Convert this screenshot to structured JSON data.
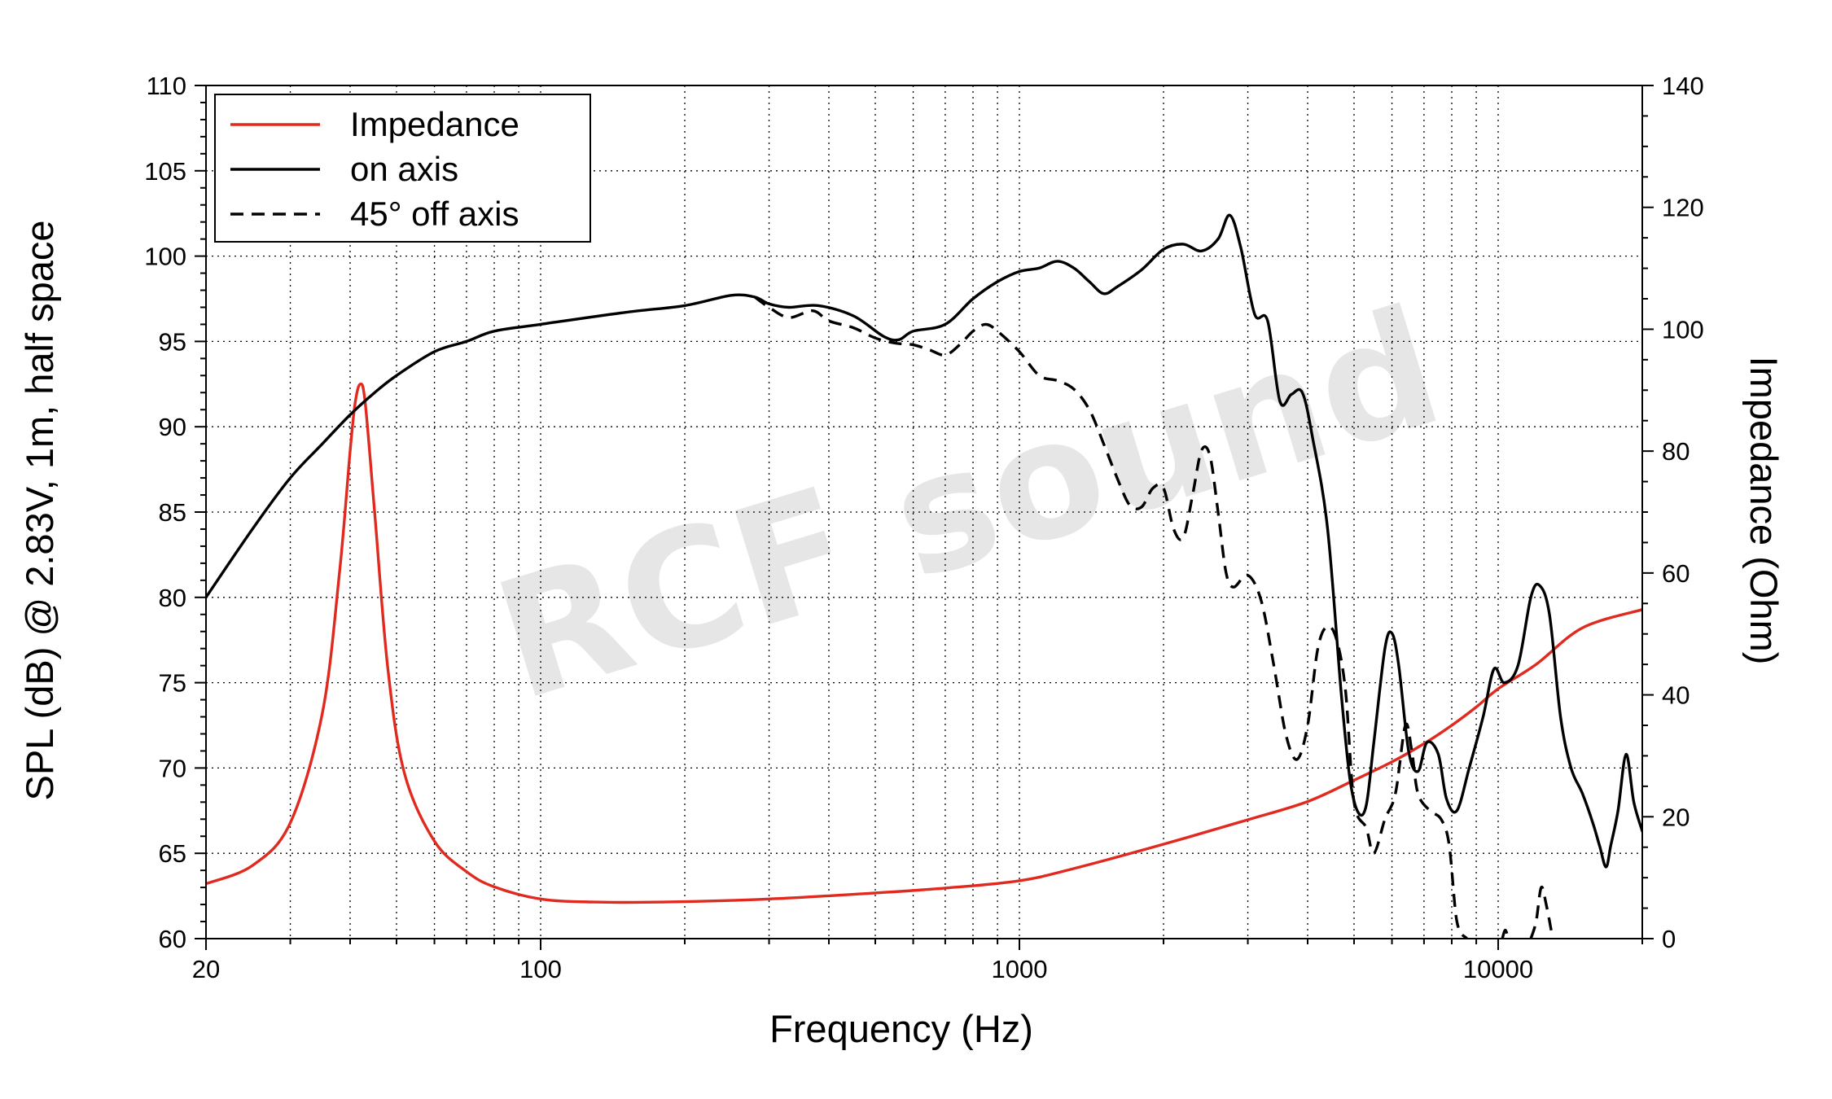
{
  "chart_data": {
    "type": "line",
    "watermark": "RCF sound",
    "xlabel": "Frequency (Hz)",
    "ylabel": "SPL (dB) @ 2.83V, 1m, half space",
    "y2label": "Impedance (Ohm)",
    "x_scale": "log",
    "xlim": [
      20,
      20000
    ],
    "ylim": [
      60,
      110
    ],
    "y2lim": [
      0,
      140
    ],
    "x_ticks": [
      {
        "v": 20,
        "label": "20"
      },
      {
        "v": 100,
        "label": "100"
      },
      {
        "v": 1000,
        "label": "1000"
      },
      {
        "v": 10000,
        "label": "10000"
      }
    ],
    "y_ticks": [
      {
        "v": 60,
        "label": "60"
      },
      {
        "v": 65,
        "label": "65"
      },
      {
        "v": 70,
        "label": "70"
      },
      {
        "v": 75,
        "label": "75"
      },
      {
        "v": 80,
        "label": "80"
      },
      {
        "v": 85,
        "label": "85"
      },
      {
        "v": 90,
        "label": "90"
      },
      {
        "v": 95,
        "label": "95"
      },
      {
        "v": 100,
        "label": "100"
      },
      {
        "v": 105,
        "label": "105"
      },
      {
        "v": 110,
        "label": "110"
      }
    ],
    "y2_ticks": [
      {
        "v": 0,
        "label": "0"
      },
      {
        "v": 20,
        "label": "20"
      },
      {
        "v": 40,
        "label": "40"
      },
      {
        "v": 60,
        "label": "60"
      },
      {
        "v": 80,
        "label": "80"
      },
      {
        "v": 100,
        "label": "100"
      },
      {
        "v": 120,
        "label": "120"
      },
      {
        "v": 140,
        "label": "140"
      }
    ],
    "grid": true,
    "legend_position": "top-left",
    "series": [
      {
        "name": "Impedance",
        "axis": "right",
        "color": "#e02a1f",
        "style": "solid",
        "points": [
          [
            20,
            9
          ],
          [
            25,
            12
          ],
          [
            30,
            19
          ],
          [
            35,
            37
          ],
          [
            38,
            60
          ],
          [
            40,
            80
          ],
          [
            41,
            88
          ],
          [
            42,
            91
          ],
          [
            43,
            88
          ],
          [
            45,
            70
          ],
          [
            48,
            44
          ],
          [
            52,
            27
          ],
          [
            60,
            16
          ],
          [
            70,
            11
          ],
          [
            80,
            8.5
          ],
          [
            100,
            6.5
          ],
          [
            130,
            6
          ],
          [
            180,
            6
          ],
          [
            300,
            6.5
          ],
          [
            500,
            7.5
          ],
          [
            700,
            8.3
          ],
          [
            1000,
            9.5
          ],
          [
            1300,
            11.5
          ],
          [
            2000,
            15.5
          ],
          [
            3000,
            19.5
          ],
          [
            4000,
            22.5
          ],
          [
            5000,
            26
          ],
          [
            6000,
            29
          ],
          [
            7000,
            32
          ],
          [
            8000,
            35
          ],
          [
            9000,
            38
          ],
          [
            10000,
            41
          ],
          [
            12000,
            45
          ],
          [
            15000,
            51
          ],
          [
            20000,
            54
          ]
        ]
      },
      {
        "name": "on axis",
        "axis": "left",
        "color": "#000000",
        "style": "solid",
        "points": [
          [
            20,
            80
          ],
          [
            25,
            84
          ],
          [
            30,
            87
          ],
          [
            35,
            89
          ],
          [
            40,
            90.7
          ],
          [
            45,
            92
          ],
          [
            50,
            93
          ],
          [
            60,
            94.4
          ],
          [
            70,
            95
          ],
          [
            80,
            95.6
          ],
          [
            100,
            96
          ],
          [
            150,
            96.7
          ],
          [
            200,
            97.1
          ],
          [
            250,
            97.7
          ],
          [
            280,
            97.6
          ],
          [
            300,
            97.2
          ],
          [
            330,
            97.0
          ],
          [
            380,
            97.1
          ],
          [
            450,
            96.5
          ],
          [
            520,
            95.3
          ],
          [
            560,
            95.1
          ],
          [
            600,
            95.6
          ],
          [
            700,
            96.0
          ],
          [
            800,
            97.5
          ],
          [
            900,
            98.5
          ],
          [
            1000,
            99.1
          ],
          [
            1100,
            99.3
          ],
          [
            1200,
            99.7
          ],
          [
            1300,
            99.3
          ],
          [
            1400,
            98.5
          ],
          [
            1500,
            97.8
          ],
          [
            1600,
            98.2
          ],
          [
            1800,
            99.2
          ],
          [
            2000,
            100.4
          ],
          [
            2200,
            100.7
          ],
          [
            2400,
            100.3
          ],
          [
            2600,
            101.0
          ],
          [
            2750,
            102.4
          ],
          [
            2900,
            100.5
          ],
          [
            3100,
            96.6
          ],
          [
            3300,
            96.2
          ],
          [
            3500,
            91.5
          ],
          [
            3700,
            91.9
          ],
          [
            3900,
            92.0
          ],
          [
            4100,
            89.3
          ],
          [
            4400,
            84.1
          ],
          [
            4700,
            74.4
          ],
          [
            4900,
            69.4
          ],
          [
            5100,
            67.4
          ],
          [
            5300,
            67.8
          ],
          [
            5500,
            71.5
          ],
          [
            5800,
            77.0
          ],
          [
            6000,
            77.9
          ],
          [
            6200,
            76.0
          ],
          [
            6500,
            71.0
          ],
          [
            6800,
            69.8
          ],
          [
            7100,
            71.5
          ],
          [
            7500,
            70.8
          ],
          [
            7800,
            68.2
          ],
          [
            8200,
            67.5
          ],
          [
            8700,
            70.0
          ],
          [
            9300,
            73.0
          ],
          [
            9800,
            75.8
          ],
          [
            10300,
            75.0
          ],
          [
            11000,
            76.0
          ],
          [
            11700,
            80.0
          ],
          [
            12200,
            80.7
          ],
          [
            12800,
            79.0
          ],
          [
            13500,
            73.0
          ],
          [
            14200,
            70.0
          ],
          [
            15000,
            68.5
          ],
          [
            15800,
            66.7
          ],
          [
            16300,
            65.4
          ],
          [
            16800,
            64.2
          ],
          [
            17200,
            65.5
          ],
          [
            17800,
            67.5
          ],
          [
            18500,
            70.8
          ],
          [
            19200,
            68.0
          ],
          [
            20000,
            66.3
          ]
        ]
      },
      {
        "name": "45° off axis",
        "axis": "left",
        "color": "#000000",
        "style": "dashed",
        "points": [
          [
            280,
            97.6
          ],
          [
            300,
            97.0
          ],
          [
            330,
            96.4
          ],
          [
            370,
            96.8
          ],
          [
            400,
            96.2
          ],
          [
            450,
            95.8
          ],
          [
            500,
            95.2
          ],
          [
            550,
            94.9
          ],
          [
            600,
            94.8
          ],
          [
            650,
            94.5
          ],
          [
            700,
            94.2
          ],
          [
            750,
            94.8
          ],
          [
            800,
            95.6
          ],
          [
            850,
            96.0
          ],
          [
            900,
            95.6
          ],
          [
            1000,
            94.4
          ],
          [
            1100,
            93.0
          ],
          [
            1200,
            92.7
          ],
          [
            1300,
            92.2
          ],
          [
            1400,
            91.0
          ],
          [
            1500,
            89.0
          ],
          [
            1600,
            87.0
          ],
          [
            1700,
            85.4
          ],
          [
            1800,
            85.3
          ],
          [
            1900,
            86.4
          ],
          [
            2000,
            86.4
          ],
          [
            2100,
            84.0
          ],
          [
            2200,
            83.5
          ],
          [
            2300,
            86.0
          ],
          [
            2400,
            88.6
          ],
          [
            2500,
            88.3
          ],
          [
            2600,
            85.0
          ],
          [
            2700,
            81.5
          ],
          [
            2800,
            80.6
          ],
          [
            3000,
            81.3
          ],
          [
            3200,
            79.8
          ],
          [
            3400,
            76.0
          ],
          [
            3600,
            72.0
          ],
          [
            3800,
            70.5
          ],
          [
            4000,
            72.5
          ],
          [
            4200,
            77.0
          ],
          [
            4400,
            78.3
          ],
          [
            4600,
            77.5
          ],
          [
            4800,
            74.5
          ],
          [
            5000,
            68.0
          ],
          [
            5300,
            66.5
          ],
          [
            5500,
            65.0
          ],
          [
            5800,
            67.0
          ],
          [
            6100,
            68.5
          ],
          [
            6400,
            72.5
          ],
          [
            6600,
            71.0
          ],
          [
            6800,
            68.5
          ],
          [
            7200,
            67.5
          ],
          [
            7600,
            67.0
          ],
          [
            7900,
            65.5
          ],
          [
            8200,
            61.0
          ],
          [
            8600,
            60.0
          ]
        ]
      },
      {
        "name": "",
        "axis": "left",
        "color": "#000000",
        "style": "dashed",
        "points": [
          [
            10200,
            60.0
          ],
          [
            10350,
            60.5
          ],
          [
            10500,
            60.0
          ]
        ]
      },
      {
        "name": "",
        "axis": "left",
        "color": "#000000",
        "style": "dashed",
        "points": [
          [
            11700,
            60.0
          ],
          [
            12000,
            61.0
          ],
          [
            12300,
            63.0
          ],
          [
            12600,
            62.0
          ],
          [
            13000,
            60.0
          ]
        ]
      }
    ]
  }
}
